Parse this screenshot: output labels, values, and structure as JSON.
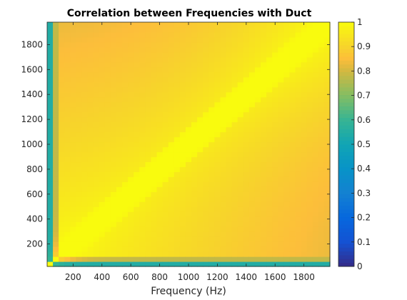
{
  "chart_data": {
    "type": "heatmap",
    "title": "Correlation between Frequencies with Duct",
    "xlabel": "Frequency (Hz)",
    "ylabel": "",
    "xlim": [
      20,
      1980
    ],
    "ylim": [
      20,
      1980
    ],
    "grid_step_hz": 40,
    "x_ticks": [
      200,
      400,
      600,
      800,
      1000,
      1200,
      1400,
      1600,
      1800
    ],
    "y_ticks": [
      200,
      400,
      600,
      800,
      1000,
      1200,
      1400,
      1600,
      1800
    ],
    "x_tick_labels": [
      "200",
      "400",
      "600",
      "800",
      "1000",
      "1200",
      "1400",
      "1600",
      "1800"
    ],
    "y_tick_labels": [
      "200",
      "400",
      "600",
      "800",
      "1000",
      "1200",
      "1400",
      "1600",
      "1800"
    ],
    "colorbar": {
      "colormap": "parula",
      "clim": [
        0,
        1
      ],
      "ticks": [
        0,
        0.1,
        0.2,
        0.3,
        0.4,
        0.5,
        0.6,
        0.7,
        0.8,
        0.9,
        1
      ],
      "tick_labels": [
        "0",
        "0.1",
        "0.2",
        "0.3",
        "0.4",
        "0.5",
        "0.6",
        "0.7",
        "0.8",
        "0.9",
        "1"
      ]
    },
    "approx_values": {
      "diagonal": 1.0,
      "lowest_frequency_row_col": 0.55,
      "second_frequency_row_col": 0.78,
      "far_off_diagonal_min": 0.82
    }
  }
}
